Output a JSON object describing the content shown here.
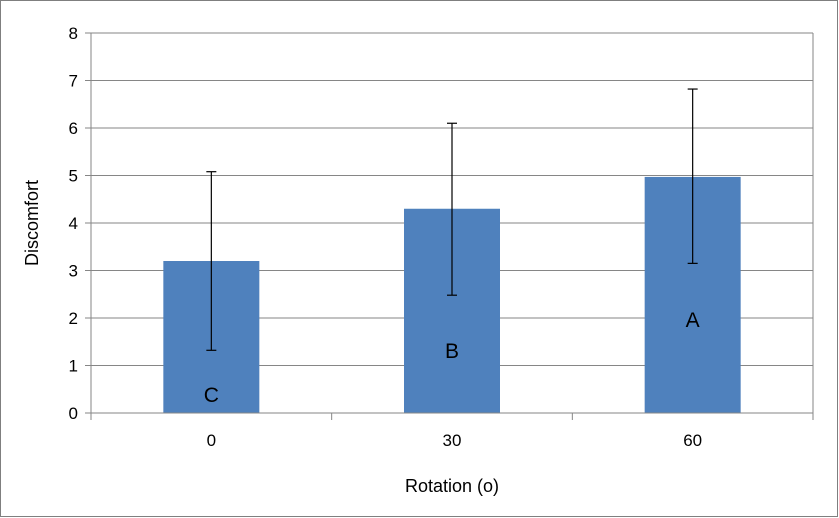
{
  "chart_data": {
    "type": "bar",
    "categories": [
      "0",
      "30",
      "60"
    ],
    "values": [
      3.2,
      4.3,
      4.97
    ],
    "error_upper": [
      5.08,
      6.1,
      6.82
    ],
    "error_lower": [
      1.32,
      2.48,
      3.15
    ],
    "bar_labels": [
      "C",
      "B",
      "A"
    ],
    "title": "",
    "xlabel": "Rotation (o)",
    "ylabel": "Discomfort",
    "ylim": [
      0,
      8
    ],
    "yticks": [
      "0",
      "1",
      "2",
      "3",
      "4",
      "5",
      "6",
      "7",
      "8"
    ],
    "grid": true,
    "legend": "none",
    "bar_color": "#4f81bd",
    "grid_color": "#868686"
  }
}
